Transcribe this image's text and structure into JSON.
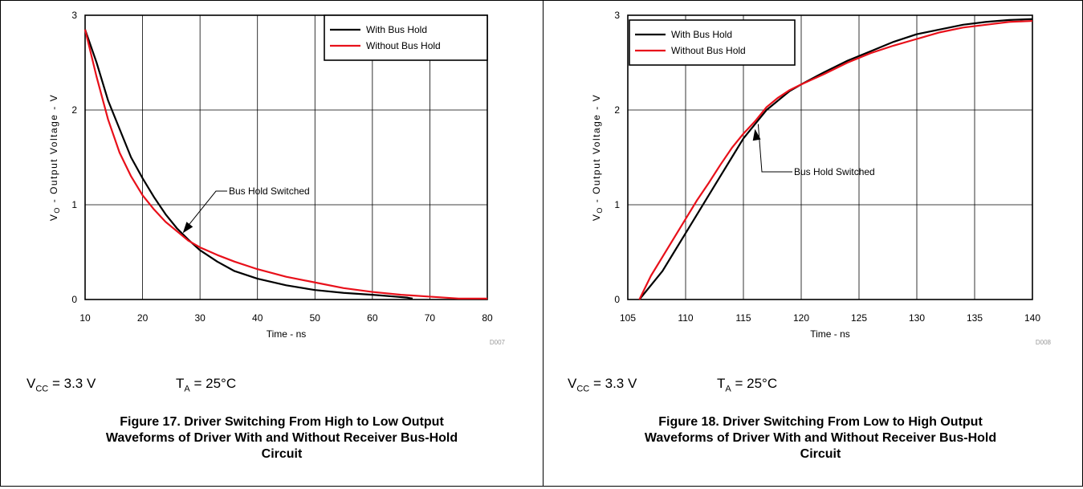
{
  "panels": [
    {
      "conditions": {
        "vcc_main": "V",
        "vcc_sub": "CC",
        "vcc_value": " = 3.3 V",
        "ta_main": "T",
        "ta_sub": "A",
        "ta_value": " = 25°C"
      },
      "caption": [
        "Figure 17. Driver Switching From High to Low Output",
        "Waveforms of Driver With and Without Receiver Bus-Hold",
        "Circuit"
      ]
    },
    {
      "conditions": {
        "vcc_main": "V",
        "vcc_sub": "CC",
        "vcc_value": " = 3.3 V",
        "ta_main": "T",
        "ta_sub": "A",
        "ta_value": " = 25°C"
      },
      "caption": [
        "Figure 18. Driver Switching From Low to High Output",
        "Waveforms of Driver With and Without Receiver Bus-Hold",
        "Circuit"
      ]
    }
  ],
  "chart_data": [
    {
      "type": "line",
      "xlabel": "Time - ns",
      "ylabel_main": "V",
      "ylabel_sub": "O",
      "ylabel_rest": " - Output Voltage - V",
      "xlim": [
        10,
        80
      ],
      "ylim": [
        0,
        3
      ],
      "xticks": [
        10,
        20,
        30,
        40,
        50,
        60,
        70,
        80
      ],
      "yticks": [
        0,
        1,
        2,
        3
      ],
      "grid": true,
      "legend_position": "top-right",
      "code": "D007",
      "annotation": {
        "text": "Bus Hold Switched",
        "point": [
          27,
          0.7
        ]
      },
      "series": [
        {
          "name": "With Bus Hold",
          "color": "#000000",
          "x": [
            10,
            12,
            14,
            16,
            18,
            20,
            22,
            24,
            26,
            28,
            30,
            33,
            36,
            40,
            45,
            50,
            55,
            60,
            62,
            64,
            66,
            67
          ],
          "y": [
            2.85,
            2.5,
            2.1,
            1.8,
            1.5,
            1.28,
            1.08,
            0.9,
            0.75,
            0.63,
            0.52,
            0.4,
            0.3,
            0.22,
            0.15,
            0.1,
            0.07,
            0.05,
            0.04,
            0.03,
            0.02,
            0.01
          ]
        },
        {
          "name": "Without Bus Hold",
          "color": "#e8101a",
          "x": [
            10,
            12,
            14,
            16,
            18,
            20,
            22,
            24,
            26,
            28,
            30,
            33,
            36,
            40,
            45,
            50,
            55,
            60,
            65,
            70,
            75,
            80
          ],
          "y": [
            2.85,
            2.35,
            1.9,
            1.55,
            1.3,
            1.1,
            0.95,
            0.82,
            0.72,
            0.62,
            0.55,
            0.47,
            0.4,
            0.32,
            0.24,
            0.18,
            0.12,
            0.08,
            0.05,
            0.03,
            0.01,
            0.01
          ]
        }
      ]
    },
    {
      "type": "line",
      "xlabel": "Time - ns",
      "ylabel_main": "V",
      "ylabel_sub": "O",
      "ylabel_rest": " - Output Voltage - V",
      "xlim": [
        105,
        140
      ],
      "ylim": [
        0,
        3
      ],
      "xticks": [
        105,
        110,
        115,
        120,
        125,
        130,
        135,
        140
      ],
      "yticks": [
        0,
        1,
        2,
        3
      ],
      "grid": true,
      "legend_position": "top-left",
      "code": "D008",
      "annotation": {
        "text": "Bus Hold Switched",
        "point": [
          116,
          1.8
        ]
      },
      "series": [
        {
          "name": "With Bus Hold",
          "color": "#000000",
          "x": [
            106,
            107,
            108,
            109,
            110,
            111,
            112,
            113,
            114,
            115,
            116,
            117,
            118,
            119,
            120,
            122,
            124,
            126,
            128,
            130,
            132,
            134,
            136,
            138,
            140
          ],
          "y": [
            0,
            0.15,
            0.3,
            0.5,
            0.7,
            0.9,
            1.1,
            1.3,
            1.5,
            1.7,
            1.85,
            2.0,
            2.1,
            2.2,
            2.27,
            2.4,
            2.52,
            2.62,
            2.72,
            2.8,
            2.85,
            2.9,
            2.93,
            2.95,
            2.96
          ]
        },
        {
          "name": "Without Bus Hold",
          "color": "#e8101a",
          "x": [
            106,
            107,
            108,
            109,
            110,
            111,
            112,
            113,
            114,
            115,
            116,
            117,
            118,
            119,
            120,
            122,
            124,
            126,
            128,
            130,
            132,
            134,
            136,
            138,
            140
          ],
          "y": [
            0,
            0.25,
            0.45,
            0.65,
            0.85,
            1.05,
            1.23,
            1.42,
            1.6,
            1.75,
            1.88,
            2.03,
            2.13,
            2.21,
            2.27,
            2.38,
            2.5,
            2.6,
            2.68,
            2.75,
            2.82,
            2.87,
            2.9,
            2.93,
            2.94
          ]
        }
      ]
    }
  ]
}
